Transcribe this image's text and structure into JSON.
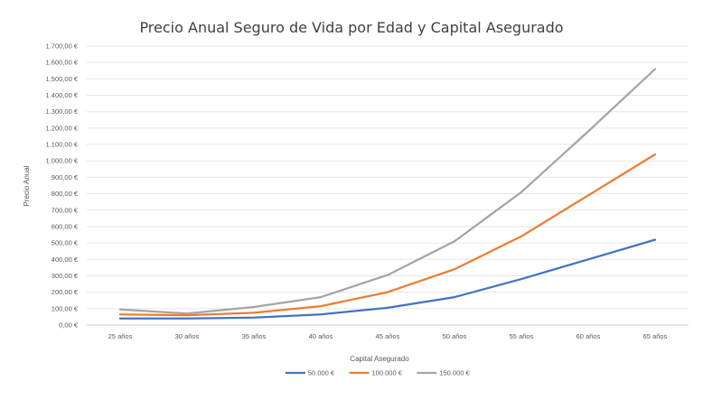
{
  "chart_data": {
    "type": "line",
    "title": "Precio Anual Seguro de Vida por Edad y Capital Asegurado",
    "xlabel": "Capital Asegurado",
    "ylabel": "Precio Anual",
    "categories": [
      "25 años",
      "30 años",
      "35 años",
      "40 años",
      "45 años",
      "50 años",
      "55 años",
      "60 años",
      "65 años"
    ],
    "yticks": [
      "0,00 €",
      "100,00 €",
      "200,00 €",
      "300,00 €",
      "400,00 €",
      "500,00 €",
      "600,00 €",
      "700,00 €",
      "800,00 €",
      "900,00 €",
      "1.000,00 €",
      "1.100,00 €",
      "1.200,00 €",
      "1.300,00 €",
      "1.400,00 €",
      "1.500,00 €",
      "1.600,00 €",
      "1.700,00 €"
    ],
    "ylim": [
      0,
      1700
    ],
    "grid": true,
    "legend_position": "bottom",
    "series": [
      {
        "name": "50.000 €",
        "color": "#4472c4",
        "values": [
          40,
          40,
          45,
          65,
          105,
          170,
          280,
          400,
          520
        ]
      },
      {
        "name": "100.000 €",
        "color": "#ed7d31",
        "values": [
          65,
          60,
          75,
          115,
          200,
          340,
          540,
          790,
          1040
        ]
      },
      {
        "name": "150.000 €",
        "color": "#a5a5a5",
        "values": [
          95,
          70,
          110,
          170,
          305,
          510,
          810,
          1180,
          1560
        ]
      }
    ]
  }
}
